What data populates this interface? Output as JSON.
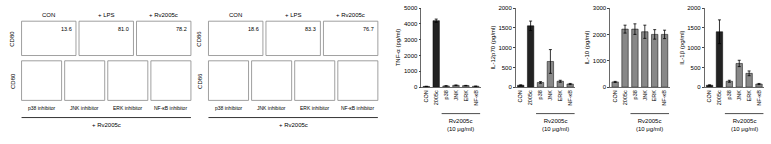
{
  "chart_data": [
    {
      "type": "flow",
      "ylabel": "CD80",
      "categories": [
        "CON",
        "+ LPS",
        "+ Rv2005c"
      ],
      "values": [
        13.6,
        81.0,
        78.2
      ],
      "value_labels": [
        "13.6",
        "81.0",
        "78.2"
      ]
    },
    {
      "type": "flow",
      "ylabel": "CD80",
      "categories": [
        "p38 inhibitor",
        "JNK inhibitor",
        "ERK inhibitor",
        "NF-κB inhibitor"
      ],
      "xlabel": "+ Rv2005c"
    },
    {
      "type": "flow",
      "ylabel": "CD86",
      "categories": [
        "CON",
        "+ LPS",
        "+ Rv2005c"
      ],
      "values": [
        18.6,
        83.3,
        76.7
      ],
      "value_labels": [
        "18.6",
        "83.3",
        "76.7"
      ]
    },
    {
      "type": "flow",
      "ylabel": "CD86",
      "categories": [
        "p38 inhibitor",
        "JNK inhibitor",
        "ERK inhibitor",
        "NF-κB inhibitor"
      ],
      "xlabel": "+ Rv2005c"
    },
    {
      "type": "bar",
      "ylabel": "TNF-α (pg/ml)",
      "xlabel": "Rv2005c\n(10 μg/ml)",
      "categories": [
        "CON",
        "2005c",
        "p38",
        "JNK",
        "ERK",
        "NF-κB"
      ],
      "values": [
        50,
        4200,
        80,
        120,
        100,
        60
      ],
      "errors": [
        10,
        100,
        15,
        20,
        15,
        10
      ],
      "colors": [
        "#222222",
        "#222222",
        "#888888",
        "#888888",
        "#888888",
        "#888888"
      ],
      "ylim": [
        0,
        5000
      ],
      "yticks": [
        0,
        1000,
        2000,
        3000,
        4000,
        5000
      ],
      "grid": false
    },
    {
      "type": "bar",
      "ylabel": "IL-12p70 (pg/ml)",
      "xlabel": "Rv2005c\n(10 μg/ml)",
      "categories": [
        "CON",
        "2005c",
        "p38",
        "JNK",
        "ERK",
        "NF-κB"
      ],
      "values": [
        50,
        1550,
        120,
        650,
        150,
        80
      ],
      "errors": [
        10,
        120,
        20,
        300,
        25,
        15
      ],
      "colors": [
        "#222222",
        "#222222",
        "#888888",
        "#888888",
        "#888888",
        "#888888"
      ],
      "ylim": [
        0,
        2000
      ],
      "yticks": [
        0,
        500,
        1000,
        1500,
        2000
      ],
      "grid": false
    },
    {
      "type": "bar",
      "ylabel": "IL-10 (pg/ml)",
      "xlabel": "Rv2005c\n(10 μg/ml)",
      "categories": [
        "CON",
        "2005c",
        "p38",
        "JNK",
        "ERK",
        "NF-κB"
      ],
      "values": [
        200,
        2200,
        2200,
        2100,
        2000,
        2000
      ],
      "errors": [
        20,
        150,
        200,
        250,
        180,
        160
      ],
      "colors": [
        "#888888",
        "#888888",
        "#888888",
        "#888888",
        "#888888",
        "#888888"
      ],
      "ylim": [
        0,
        3000
      ],
      "yticks": [
        0,
        1000,
        2000,
        3000
      ],
      "grid": false
    },
    {
      "type": "bar",
      "ylabel": "IL-1β (pg/ml)",
      "xlabel": "Rv2005c\n(10 μg/ml)",
      "categories": [
        "CON",
        "2005c",
        "p38",
        "JNK",
        "ERK",
        "NF-κB"
      ],
      "values": [
        50,
        1400,
        150,
        600,
        350,
        80
      ],
      "errors": [
        10,
        300,
        25,
        80,
        60,
        15
      ],
      "colors": [
        "#222222",
        "#222222",
        "#888888",
        "#888888",
        "#888888",
        "#888888"
      ],
      "ylim": [
        0,
        2000
      ],
      "yticks": [
        0,
        500,
        1000,
        1500,
        2000
      ],
      "grid": false
    }
  ]
}
